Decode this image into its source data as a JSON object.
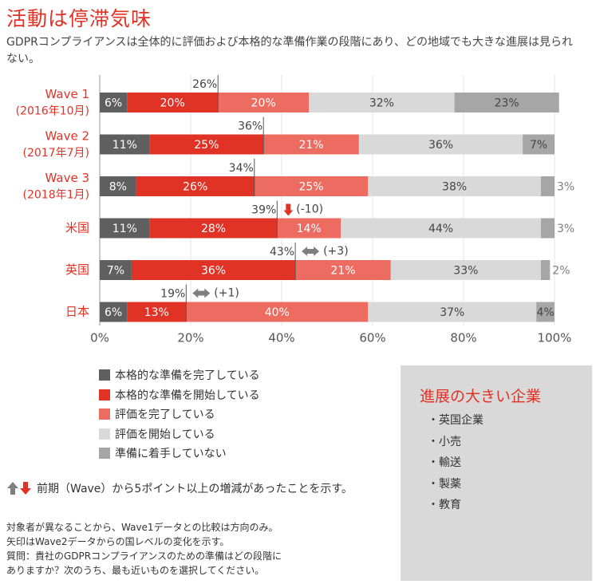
{
  "header": {
    "title": "活動は停滞気味",
    "subtitle": "GDPRコンプライアンスは全体的に評価および本格的な準備作業の段階にあり、どの地域でも大きな進展は見られない。"
  },
  "chart_data": {
    "type": "bar",
    "orientation": "horizontal",
    "stacked": true,
    "categories": [
      [
        "Wave 1",
        "(2016年10月)"
      ],
      [
        "Wave 2",
        "(2017年7月)"
      ],
      [
        "Wave 3",
        "(2018年1月)"
      ],
      [
        "米国"
      ],
      [
        "英国"
      ],
      [
        "日本"
      ]
    ],
    "series": [
      {
        "name": "本格的な準備を完了している",
        "color": "#5f5f5f",
        "values": [
          6,
          11,
          8,
          11,
          7,
          6
        ]
      },
      {
        "name": "本格的な準備を開始している",
        "color": "#e13226",
        "values": [
          20,
          25,
          26,
          28,
          36,
          13
        ]
      },
      {
        "name": "評価を完了している",
        "color": "#ec6c62",
        "values": [
          20,
          21,
          25,
          14,
          21,
          40
        ]
      },
      {
        "name": "評価を開始している",
        "color": "#d9d9d9",
        "values": [
          32,
          36,
          38,
          44,
          33,
          37
        ]
      },
      {
        "name": "準備に着手していない",
        "color": "#a6a6a6",
        "values": [
          23,
          7,
          3,
          3,
          2,
          4
        ]
      }
    ],
    "value_labels": [
      [
        "6%",
        "20%",
        "20%",
        "32%",
        "23%"
      ],
      [
        "11%",
        "25%",
        "21%",
        "36%",
        "7%"
      ],
      [
        "8%",
        "26%",
        "25%",
        "38%",
        "3%"
      ],
      [
        "11%",
        "28%",
        "14%",
        "44%",
        "3%"
      ],
      [
        "7%",
        "36%",
        "21%",
        "33%",
        "2%"
      ],
      [
        "6%",
        "13%",
        "40%",
        "37%",
        "4%"
      ]
    ],
    "cumulative_markers": [
      {
        "row": 0,
        "value": 26,
        "label": "26%"
      },
      {
        "row": 1,
        "value": 36,
        "label": "36%"
      },
      {
        "row": 2,
        "value": 34,
        "label": "34%"
      },
      {
        "row": 3,
        "value": 39,
        "label": "39%",
        "change": "(-10)",
        "direction": "down"
      },
      {
        "row": 4,
        "value": 43,
        "label": "43%",
        "change": "(+3)",
        "direction": "flat"
      },
      {
        "row": 5,
        "value": 19,
        "label": "19%",
        "change": "(+1)",
        "direction": "flat"
      }
    ],
    "xlim": [
      0,
      100
    ],
    "ticks": [
      0,
      20,
      40,
      60,
      80,
      100
    ],
    "tick_labels": [
      "0%",
      "20%",
      "40%",
      "60%",
      "80%",
      "100%"
    ],
    "category_label_color": "#e13226",
    "up_arrow_color": "#7f7f7f",
    "down_arrow_color": "#e13226",
    "flat_arrow_color": "#7f7f7f"
  },
  "legend": {
    "items": [
      {
        "label": "本格的な準備を完了している",
        "color": "#5f5f5f"
      },
      {
        "label": "本格的な準備を開始している",
        "color": "#e13226"
      },
      {
        "label": "評価を完了している",
        "color": "#ec6c62"
      },
      {
        "label": "評価を開始している",
        "color": "#d9d9d9"
      },
      {
        "label": "準備に着手していない",
        "color": "#a6a6a6"
      }
    ]
  },
  "arrow_note": "前期（Wave）から5ポイント以上の増減があったことを示す。",
  "footnotes": [
    "対象者が異なることから、Wave1データとの比較は方向のみ。",
    "矢印はWave2データからの国レベルの変化を示す。",
    "質問：貴社のGDPRコンプライアンスのための準備はどの段階に",
    "ありますか？次のうち、最も近いものを選択してください。"
  ],
  "panel": {
    "title": "進展の大きい企業",
    "items": [
      "・英国企業",
      "・小売",
      "・輸送",
      "・製薬",
      "・教育"
    ]
  }
}
